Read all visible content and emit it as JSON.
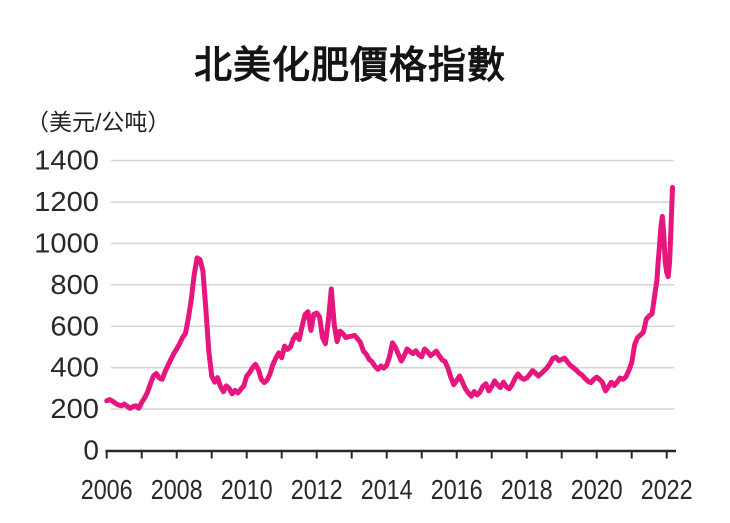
{
  "chart": {
    "title": "北美化肥價格指數",
    "unit_label": "（美元/公吨）",
    "line_color": "#E7157E",
    "grid_color": "#d7d7d7",
    "axis_color": "#29262a",
    "text_color": "#2b282c",
    "background": "#ffffff"
  },
  "chart_data": {
    "type": "line",
    "title": "北美化肥價格指數",
    "ylabel": "（美元/公吨）",
    "xlabel": "",
    "grid": "horizontal",
    "legend": "none",
    "y_axis": {
      "range": [
        0,
        1400
      ],
      "ticks": [
        0,
        200,
        400,
        600,
        800,
        1000,
        1200,
        1400
      ]
    },
    "x_axis": {
      "tick_years": [
        2006,
        2007,
        2008,
        2009,
        2010,
        2011,
        2012,
        2013,
        2014,
        2015,
        2016,
        2017,
        2018,
        2019,
        2020,
        2021,
        2022
      ],
      "label_years": [
        2006,
        2008,
        2010,
        2012,
        2014,
        2016,
        2018,
        2020,
        2022
      ]
    },
    "series": [
      {
        "name": "北美化肥價格指數",
        "color": "#E7157E",
        "points": [
          [
            2006.0,
            240
          ],
          [
            2006.083,
            246
          ],
          [
            2006.167,
            238
          ],
          [
            2006.25,
            228
          ],
          [
            2006.333,
            220
          ],
          [
            2006.417,
            216
          ],
          [
            2006.5,
            224
          ],
          [
            2006.583,
            214
          ],
          [
            2006.667,
            204
          ],
          [
            2006.75,
            212
          ],
          [
            2006.833,
            216
          ],
          [
            2006.917,
            204
          ],
          [
            2007.0,
            232
          ],
          [
            2007.083,
            254
          ],
          [
            2007.167,
            282
          ],
          [
            2007.25,
            322
          ],
          [
            2007.333,
            360
          ],
          [
            2007.417,
            372
          ],
          [
            2007.5,
            350
          ],
          [
            2007.583,
            344
          ],
          [
            2007.667,
            380
          ],
          [
            2007.75,
            410
          ],
          [
            2007.833,
            440
          ],
          [
            2007.917,
            468
          ],
          [
            2008.0,
            490
          ],
          [
            2008.083,
            516
          ],
          [
            2008.167,
            545
          ],
          [
            2008.25,
            565
          ],
          [
            2008.333,
            640
          ],
          [
            2008.417,
            730
          ],
          [
            2008.5,
            850
          ],
          [
            2008.583,
            930
          ],
          [
            2008.667,
            922
          ],
          [
            2008.75,
            868
          ],
          [
            2008.833,
            680
          ],
          [
            2008.917,
            480
          ],
          [
            2009.0,
            360
          ],
          [
            2009.083,
            330
          ],
          [
            2009.167,
            352
          ],
          [
            2009.25,
            310
          ],
          [
            2009.333,
            284
          ],
          [
            2009.417,
            312
          ],
          [
            2009.5,
            300
          ],
          [
            2009.583,
            274
          ],
          [
            2009.667,
            290
          ],
          [
            2009.75,
            278
          ],
          [
            2009.833,
            296
          ],
          [
            2009.917,
            312
          ],
          [
            2010.0,
            360
          ],
          [
            2010.083,
            376
          ],
          [
            2010.167,
            400
          ],
          [
            2010.25,
            416
          ],
          [
            2010.333,
            390
          ],
          [
            2010.417,
            344
          ],
          [
            2010.5,
            328
          ],
          [
            2010.583,
            340
          ],
          [
            2010.667,
            370
          ],
          [
            2010.75,
            416
          ],
          [
            2010.833,
            446
          ],
          [
            2010.917,
            472
          ],
          [
            2011.0,
            448
          ],
          [
            2011.083,
            504
          ],
          [
            2011.167,
            488
          ],
          [
            2011.25,
            500
          ],
          [
            2011.333,
            540
          ],
          [
            2011.417,
            560
          ],
          [
            2011.5,
            536
          ],
          [
            2011.583,
            600
          ],
          [
            2011.667,
            656
          ],
          [
            2011.75,
            670
          ],
          [
            2011.833,
            580
          ],
          [
            2011.917,
            658
          ],
          [
            2012.0,
            664
          ],
          [
            2012.083,
            644
          ],
          [
            2012.167,
            545
          ],
          [
            2012.25,
            516
          ],
          [
            2012.333,
            630
          ],
          [
            2012.417,
            780
          ],
          [
            2012.5,
            610
          ],
          [
            2012.583,
            526
          ],
          [
            2012.667,
            576
          ],
          [
            2012.75,
            564
          ],
          [
            2012.833,
            545
          ],
          [
            2012.917,
            550
          ],
          [
            2013.0,
            552
          ],
          [
            2013.083,
            556
          ],
          [
            2013.167,
            540
          ],
          [
            2013.25,
            522
          ],
          [
            2013.333,
            480
          ],
          [
            2013.417,
            465
          ],
          [
            2013.5,
            440
          ],
          [
            2013.583,
            428
          ],
          [
            2013.667,
            406
          ],
          [
            2013.75,
            392
          ],
          [
            2013.833,
            408
          ],
          [
            2013.917,
            398
          ],
          [
            2014.0,
            412
          ],
          [
            2014.083,
            455
          ],
          [
            2014.167,
            520
          ],
          [
            2014.25,
            498
          ],
          [
            2014.333,
            465
          ],
          [
            2014.417,
            432
          ],
          [
            2014.5,
            458
          ],
          [
            2014.583,
            490
          ],
          [
            2014.667,
            478
          ],
          [
            2014.75,
            468
          ],
          [
            2014.833,
            482
          ],
          [
            2014.917,
            462
          ],
          [
            2015.0,
            452
          ],
          [
            2015.083,
            490
          ],
          [
            2015.167,
            478
          ],
          [
            2015.25,
            458
          ],
          [
            2015.333,
            468
          ],
          [
            2015.417,
            480
          ],
          [
            2015.5,
            458
          ],
          [
            2015.583,
            438
          ],
          [
            2015.667,
            430
          ],
          [
            2015.75,
            398
          ],
          [
            2015.833,
            352
          ],
          [
            2015.917,
            318
          ],
          [
            2016.0,
            338
          ],
          [
            2016.083,
            360
          ],
          [
            2016.167,
            330
          ],
          [
            2016.25,
            298
          ],
          [
            2016.333,
            278
          ],
          [
            2016.417,
            262
          ],
          [
            2016.5,
            285
          ],
          [
            2016.583,
            268
          ],
          [
            2016.667,
            282
          ],
          [
            2016.75,
            310
          ],
          [
            2016.833,
            322
          ],
          [
            2016.917,
            288
          ],
          [
            2017.0,
            308
          ],
          [
            2017.083,
            336
          ],
          [
            2017.167,
            318
          ],
          [
            2017.25,
            304
          ],
          [
            2017.333,
            330
          ],
          [
            2017.417,
            308
          ],
          [
            2017.5,
            298
          ],
          [
            2017.583,
            318
          ],
          [
            2017.667,
            348
          ],
          [
            2017.75,
            370
          ],
          [
            2017.833,
            352
          ],
          [
            2017.917,
            344
          ],
          [
            2018.0,
            350
          ],
          [
            2018.083,
            366
          ],
          [
            2018.167,
            386
          ],
          [
            2018.25,
            374
          ],
          [
            2018.333,
            360
          ],
          [
            2018.417,
            372
          ],
          [
            2018.5,
            386
          ],
          [
            2018.583,
            400
          ],
          [
            2018.667,
            420
          ],
          [
            2018.75,
            446
          ],
          [
            2018.833,
            450
          ],
          [
            2018.917,
            434
          ],
          [
            2019.0,
            440
          ],
          [
            2019.083,
            446
          ],
          [
            2019.167,
            428
          ],
          [
            2019.25,
            410
          ],
          [
            2019.333,
            400
          ],
          [
            2019.417,
            388
          ],
          [
            2019.5,
            374
          ],
          [
            2019.583,
            364
          ],
          [
            2019.667,
            348
          ],
          [
            2019.75,
            334
          ],
          [
            2019.833,
            328
          ],
          [
            2019.917,
            344
          ],
          [
            2020.0,
            354
          ],
          [
            2020.083,
            344
          ],
          [
            2020.167,
            328
          ],
          [
            2020.25,
            288
          ],
          [
            2020.333,
            308
          ],
          [
            2020.417,
            330
          ],
          [
            2020.5,
            314
          ],
          [
            2020.583,
            330
          ],
          [
            2020.667,
            350
          ],
          [
            2020.75,
            344
          ],
          [
            2020.833,
            356
          ],
          [
            2020.917,
            386
          ],
          [
            2021.0,
            424
          ],
          [
            2021.083,
            510
          ],
          [
            2021.167,
            545
          ],
          [
            2021.25,
            558
          ],
          [
            2021.333,
            572
          ],
          [
            2021.417,
            634
          ],
          [
            2021.5,
            650
          ],
          [
            2021.583,
            660
          ],
          [
            2021.667,
            760
          ],
          [
            2021.72,
            820
          ],
          [
            2021.75,
            900
          ],
          [
            2021.8,
            1000
          ],
          [
            2021.833,
            1080
          ],
          [
            2021.875,
            1130
          ],
          [
            2021.917,
            1040
          ],
          [
            2021.958,
            910
          ],
          [
            2022.0,
            860
          ],
          [
            2022.042,
            840
          ],
          [
            2022.083,
            910
          ],
          [
            2022.125,
            1090
          ],
          [
            2022.167,
            1270
          ]
        ]
      }
    ]
  }
}
